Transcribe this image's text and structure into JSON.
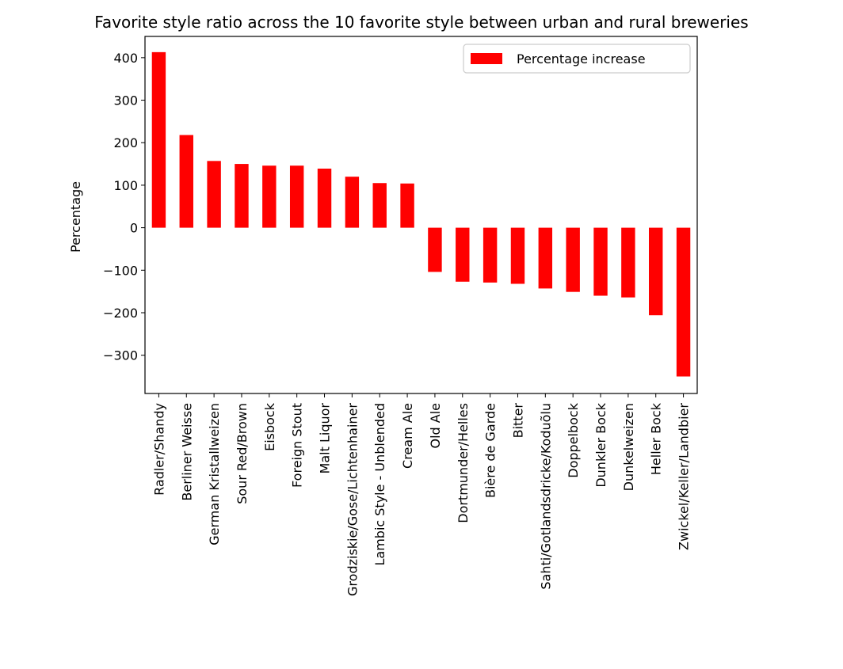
{
  "chart_data": {
    "type": "bar",
    "title": "Favorite style ratio across the 10 favorite style between urban and rural breweries",
    "xlabel": "",
    "ylabel": "Percentage",
    "ylim": [
      -390,
      450
    ],
    "yticks": [
      400,
      300,
      200,
      100,
      0,
      -100,
      -200,
      -300
    ],
    "ytick_labels": [
      "400",
      "300",
      "200",
      "100",
      "0",
      "−100",
      "−200",
      "−300"
    ],
    "grid": false,
    "legend": "top-right",
    "bar_color": "#ff0000",
    "series": [
      {
        "name": "Percentage increase",
        "values": [
          413,
          218,
          157,
          150,
          146,
          146,
          139,
          120,
          105,
          104,
          -104,
          -127,
          -129,
          -132,
          -143,
          -151,
          -160,
          -164,
          -206,
          -350
        ]
      }
    ],
    "categories": [
      "Radler/Shandy",
      "Berliner Weisse",
      "German Kristallweizen",
      "Sour Red/Brown",
      "Eisbock",
      "Foreign Stout",
      "Malt Liquor",
      "Grodziskie/Gose/Lichtenhainer",
      "Lambic Style - Unblended",
      "Cream Ale",
      "Old Ale",
      "Dortmunder/Helles",
      "Bière de Garde",
      "Bitter",
      "Sahti/Gotlandsdricke/Koduõlu",
      "Doppelbock",
      "Dunkler Bock",
      "Dunkelweizen",
      "Heller Bock",
      "Zwickel/Keller/Landbier"
    ]
  }
}
